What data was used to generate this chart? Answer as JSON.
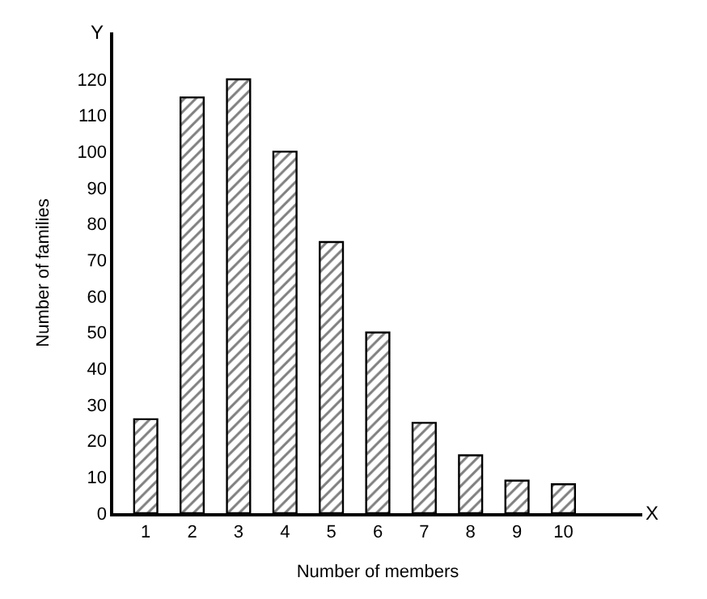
{
  "chart_data": {
    "type": "bar",
    "xlabel": "Number of members",
    "ylabel": "Number of families",
    "categories": [
      "1",
      "2",
      "3",
      "4",
      "5",
      "6",
      "7",
      "8",
      "9",
      "10"
    ],
    "values": [
      26,
      115,
      120,
      100,
      75,
      50,
      25,
      16,
      9,
      8
    ],
    "color": "#000000",
    "ylim": [
      0,
      133
    ],
    "yticks": [
      0,
      10,
      20,
      30,
      40,
      50,
      60,
      70,
      80,
      90,
      100,
      110,
      120
    ],
    "annotations": [
      "X",
      "Y"
    ]
  }
}
